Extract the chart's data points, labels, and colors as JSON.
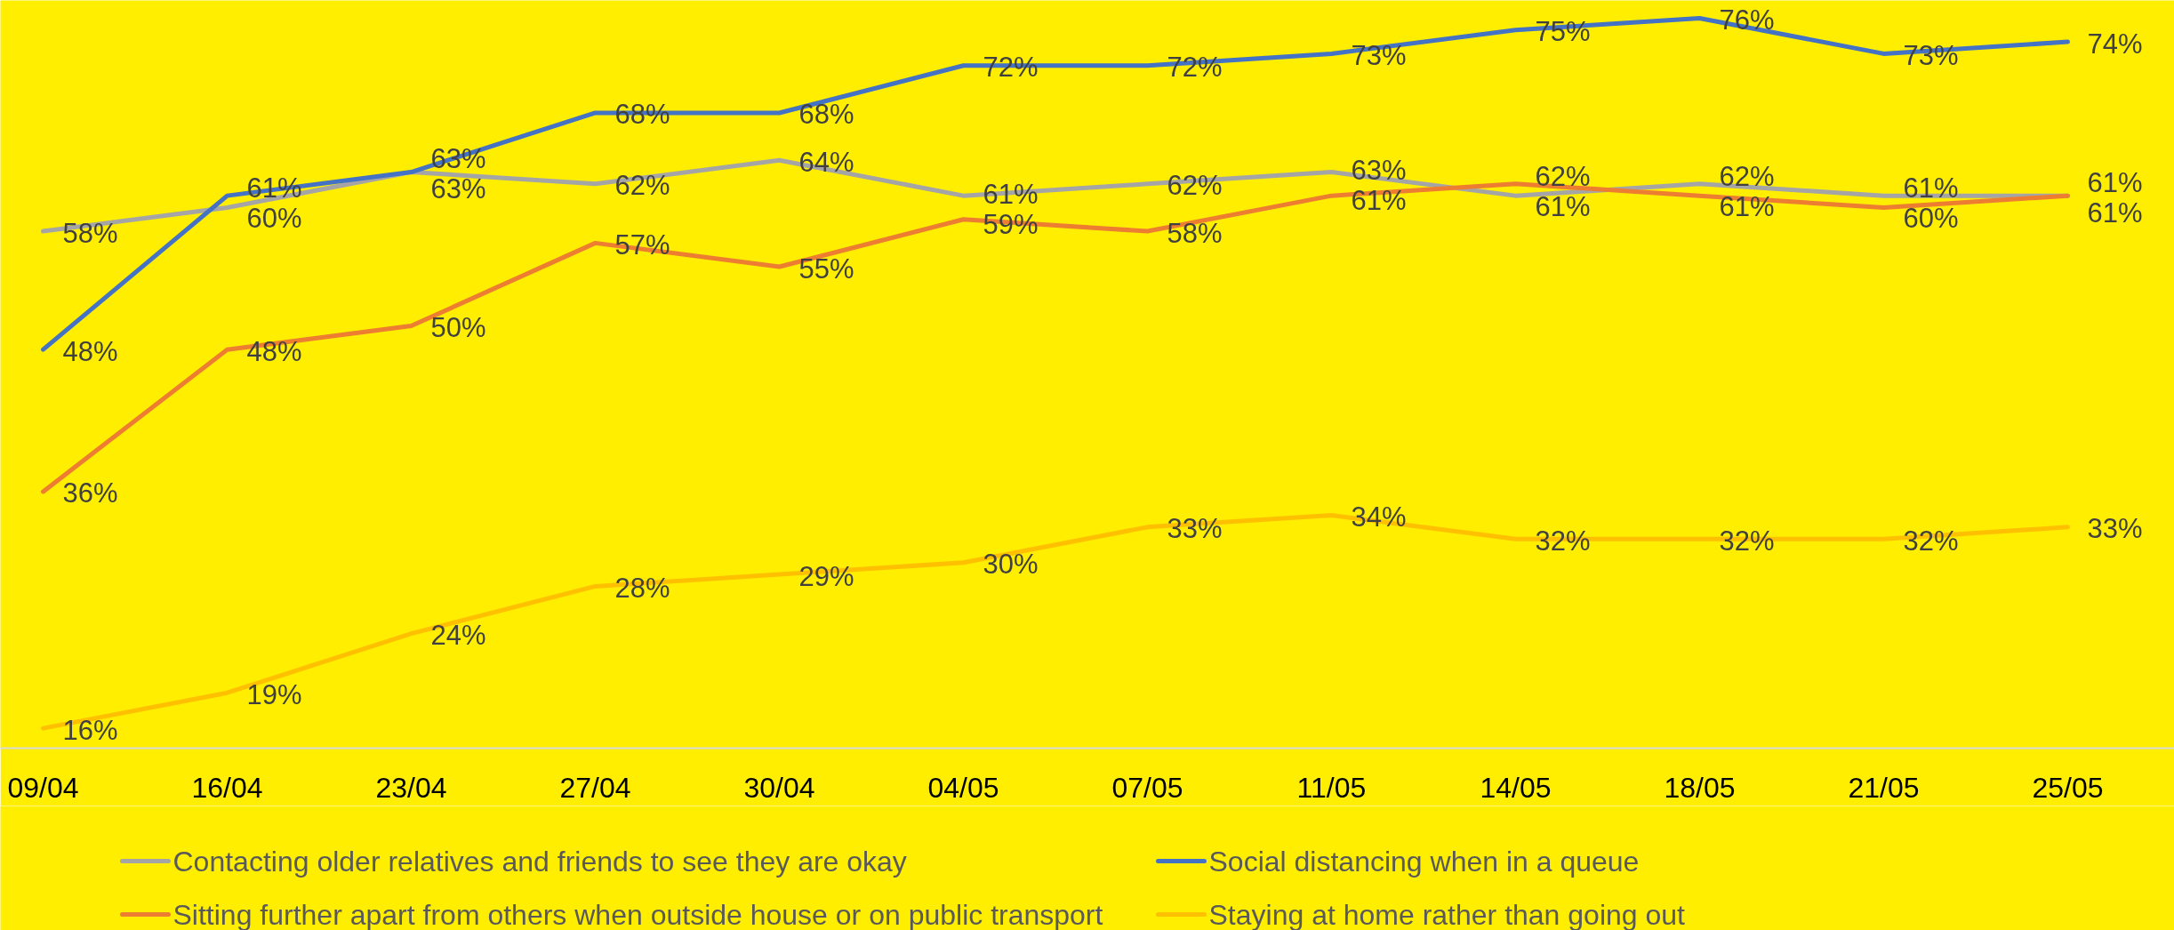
{
  "chart_data": {
    "type": "line",
    "categories": [
      "09/04",
      "16/04",
      "23/04",
      "27/04",
      "30/04",
      "04/05",
      "07/05",
      "11/05",
      "14/05",
      "18/05",
      "21/05",
      "25/05"
    ],
    "series": [
      {
        "name": "Contacting older relatives and friends to see they are okay",
        "color": "#a5a5a5",
        "values": [
          58,
          60,
          63,
          62,
          64,
          61,
          62,
          63,
          61,
          62,
          61,
          61
        ],
        "value_labels": [
          "58%",
          "60%",
          "63%",
          "62%",
          "64%",
          "61%",
          "62%",
          "63%",
          "61%",
          "62%",
          "61%",
          "61%"
        ]
      },
      {
        "name": "Social distancing when in a queue",
        "color": "#4472c4",
        "values": [
          48,
          61,
          63,
          68,
          68,
          72,
          72,
          73,
          75,
          76,
          73,
          74
        ],
        "value_labels": [
          "48%",
          "61%",
          "63%",
          "68%",
          "68%",
          "72%",
          "72%",
          "73%",
          "75%",
          "76%",
          "73%",
          "74%"
        ]
      },
      {
        "name": "Sitting further apart from others when outside house or on public transport",
        "color": "#ed7d31",
        "values": [
          36,
          48,
          50,
          57,
          55,
          59,
          58,
          61,
          62,
          61,
          60,
          61
        ],
        "value_labels": [
          "36%",
          "48%",
          "50%",
          "57%",
          "55%",
          "59%",
          "58%",
          "61%",
          "62%",
          "61%",
          "60%",
          "61%"
        ]
      },
      {
        "name": "Staying at home rather than going out",
        "color": "#ffc000",
        "values": [
          16,
          19,
          24,
          28,
          29,
          30,
          33,
          34,
          32,
          32,
          32,
          33
        ],
        "value_labels": [
          "16%",
          "19%",
          "24%",
          "28%",
          "29%",
          "30%",
          "33%",
          "34%",
          "32%",
          "32%",
          "32%",
          "33%"
        ]
      }
    ],
    "legend": "bottom",
    "tick_labels": "x"
  }
}
